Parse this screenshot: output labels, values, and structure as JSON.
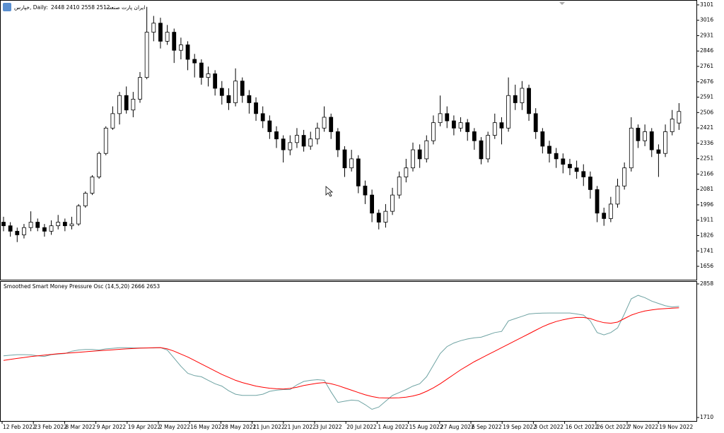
{
  "chart_data": [
    {
      "type": "candlestick",
      "title": "خپارس, Daily:",
      "subtitle": "2448 2410 2558 2512",
      "symbol_name": "ایران پارت صنعت",
      "up_color": "#ffffff",
      "down_color": "#000000",
      "edge_color": "#000000",
      "ylim": [
        1578,
        3128
      ],
      "yticks": [
        3101,
        3016,
        2931,
        2846,
        2761,
        2676,
        2591,
        2506,
        2421,
        2336,
        2251,
        2166,
        2081,
        1996,
        1911,
        1826,
        1741,
        1656
      ],
      "open": [
        1900,
        1880,
        1850,
        1830,
        1870,
        1900,
        1870,
        1850,
        1880,
        1900,
        1880,
        1890,
        1990,
        2060,
        2150,
        2280,
        2420,
        2500,
        2600,
        2520,
        2580,
        2700,
        2950,
        3000,
        2900,
        2950,
        2850,
        2880,
        2800,
        2780,
        2700,
        2720,
        2640,
        2600,
        2560,
        2680,
        2600,
        2560,
        2500,
        2460,
        2400,
        2360,
        2300,
        2340,
        2380,
        2320,
        2360,
        2420,
        2480,
        2400,
        2300,
        2200,
        2250,
        2100,
        2050,
        1950,
        1900,
        1960,
        2050,
        2150,
        2200,
        2300,
        2250,
        2350,
        2450,
        2500,
        2460,
        2420,
        2450,
        2400,
        2350,
        2250,
        2380,
        2450,
        2420,
        2600,
        2560,
        2640,
        2500,
        2400,
        2320,
        2280,
        2250,
        2220,
        2200,
        2180,
        2150,
        2080,
        1950,
        1920,
        2000,
        2100,
        2200,
        2420,
        2350,
        2400,
        2300,
        2280,
        2400,
        2448
      ],
      "high": [
        1930,
        1900,
        1870,
        1890,
        1960,
        1920,
        1890,
        1910,
        1940,
        1920,
        1930,
        2000,
        2070,
        2160,
        2290,
        2430,
        2540,
        2620,
        2650,
        2620,
        2730,
        3090,
        3040,
        3030,
        2990,
        2970,
        2920,
        2900,
        2830,
        2800,
        2760,
        2740,
        2680,
        2640,
        2750,
        2700,
        2630,
        2590,
        2540,
        2490,
        2430,
        2380,
        2380,
        2420,
        2410,
        2400,
        2450,
        2540,
        2500,
        2420,
        2320,
        2300,
        2270,
        2130,
        2080,
        1970,
        2000,
        2090,
        2180,
        2250,
        2340,
        2330,
        2380,
        2490,
        2600,
        2540,
        2490,
        2480,
        2470,
        2420,
        2370,
        2400,
        2500,
        2480,
        2700,
        2660,
        2680,
        2660,
        2530,
        2420,
        2350,
        2310,
        2280,
        2250,
        2240,
        2220,
        2180,
        2100,
        1980,
        2040,
        2140,
        2230,
        2480,
        2440,
        2440,
        2420,
        2330,
        2440,
        2520,
        2558
      ],
      "low": [
        1850,
        1820,
        1790,
        1810,
        1850,
        1850,
        1820,
        1830,
        1860,
        1850,
        1860,
        1880,
        1980,
        2050,
        2140,
        2270,
        2410,
        2440,
        2500,
        2480,
        2560,
        2690,
        2900,
        2860,
        2880,
        2780,
        2800,
        2740,
        2700,
        2660,
        2650,
        2600,
        2550,
        2520,
        2540,
        2560,
        2500,
        2460,
        2420,
        2360,
        2310,
        2230,
        2270,
        2310,
        2290,
        2300,
        2330,
        2400,
        2360,
        2260,
        2150,
        2180,
        2060,
        2000,
        1900,
        1860,
        1870,
        1940,
        2030,
        2120,
        2180,
        2200,
        2230,
        2330,
        2430,
        2420,
        2380,
        2400,
        2350,
        2300,
        2220,
        2230,
        2360,
        2330,
        2400,
        2520,
        2520,
        2460,
        2360,
        2280,
        2230,
        2200,
        2170,
        2160,
        2140,
        2100,
        2030,
        1900,
        1880,
        1900,
        1980,
        2080,
        2180,
        2310,
        2320,
        2260,
        2150,
        2260,
        2380,
        2410
      ],
      "close": [
        1880,
        1850,
        1830,
        1870,
        1900,
        1870,
        1850,
        1880,
        1900,
        1880,
        1890,
        1990,
        2060,
        2150,
        2280,
        2420,
        2500,
        2600,
        2520,
        2580,
        2700,
        2950,
        3000,
        2900,
        2950,
        2850,
        2880,
        2800,
        2780,
        2700,
        2720,
        2640,
        2600,
        2560,
        2680,
        2600,
        2560,
        2500,
        2460,
        2400,
        2360,
        2300,
        2340,
        2380,
        2320,
        2360,
        2420,
        2480,
        2400,
        2300,
        2200,
        2250,
        2100,
        2050,
        1950,
        1900,
        1960,
        2050,
        2150,
        2200,
        2300,
        2250,
        2350,
        2450,
        2500,
        2460,
        2420,
        2450,
        2400,
        2350,
        2250,
        2380,
        2450,
        2420,
        2600,
        2560,
        2640,
        2500,
        2400,
        2320,
        2280,
        2250,
        2220,
        2200,
        2180,
        2150,
        2080,
        1950,
        1920,
        2000,
        2100,
        2200,
        2420,
        2350,
        2400,
        2300,
        2280,
        2400,
        2470,
        2512
      ],
      "x_labels": [
        "12 Feb 2022",
        "23 Feb 2022",
        "8 Mar 2022",
        "9 Apr 2022",
        "19 Apr 2022",
        "2 May 2022",
        "16 May 2022",
        "28 May 2022",
        "11 Jun 2022",
        "21 Jun 2022",
        "3 Jul 2022",
        "20 Jul 2022",
        "1 Aug 2022",
        "15 Aug 2022",
        "27 Aug 2022",
        "6 Sep 2022",
        "19 Sep 2022",
        "3 Oct 2022",
        "16 Oct 2022",
        "26 Oct 2022",
        "7 Nov 2022",
        "19 Nov 2022"
      ]
    },
    {
      "type": "line",
      "title": "Smoothed Smart Money Pressure Osc (14,5,20) 2666 2653",
      "ylim": [
        1674,
        2882
      ],
      "yticks": [
        2858,
        1710
      ],
      "series": [
        {
          "color": "#6fa3a3",
          "values": [
            2240,
            2245,
            2250,
            2250,
            2248,
            2240,
            2235,
            2250,
            2255,
            2260,
            2280,
            2290,
            2295,
            2295,
            2290,
            2300,
            2305,
            2310,
            2310,
            2308,
            2308,
            2308,
            2308,
            2310,
            2290,
            2220,
            2150,
            2090,
            2070,
            2060,
            2030,
            2000,
            1980,
            1940,
            1910,
            1900,
            1900,
            1900,
            1910,
            1935,
            1945,
            1950,
            1950,
            1990,
            2020,
            2030,
            2035,
            2030,
            1930,
            1840,
            1850,
            1860,
            1855,
            1820,
            1780,
            1800,
            1850,
            1900,
            1925,
            1950,
            1980,
            2000,
            2060,
            2160,
            2260,
            2320,
            2350,
            2370,
            2385,
            2395,
            2400,
            2420,
            2440,
            2450,
            2540,
            2560,
            2580,
            2600,
            2605,
            2607,
            2608,
            2608,
            2608,
            2608,
            2600,
            2590,
            2540,
            2440,
            2420,
            2440,
            2480,
            2600,
            2730,
            2760,
            2740,
            2710,
            2690,
            2670,
            2660,
            2666
          ]
        },
        {
          "color": "#ff0000",
          "values": [
            2200,
            2210,
            2218,
            2226,
            2234,
            2240,
            2246,
            2252,
            2258,
            2262,
            2266,
            2270,
            2275,
            2280,
            2284,
            2288,
            2292,
            2296,
            2300,
            2303,
            2306,
            2308,
            2310,
            2311,
            2300,
            2280,
            2255,
            2230,
            2200,
            2170,
            2140,
            2110,
            2080,
            2055,
            2030,
            2010,
            1995,
            1980,
            1970,
            1962,
            1957,
            1955,
            1960,
            1970,
            1985,
            1995,
            2005,
            2010,
            2000,
            1985,
            1965,
            1945,
            1925,
            1905,
            1890,
            1880,
            1878,
            1878,
            1880,
            1885,
            1895,
            1910,
            1935,
            1965,
            2000,
            2040,
            2080,
            2120,
            2155,
            2190,
            2220,
            2250,
            2280,
            2310,
            2340,
            2370,
            2400,
            2430,
            2460,
            2490,
            2515,
            2535,
            2550,
            2562,
            2570,
            2570,
            2560,
            2540,
            2525,
            2520,
            2530,
            2560,
            2590,
            2610,
            2625,
            2635,
            2642,
            2646,
            2650,
            2653
          ]
        }
      ]
    }
  ]
}
